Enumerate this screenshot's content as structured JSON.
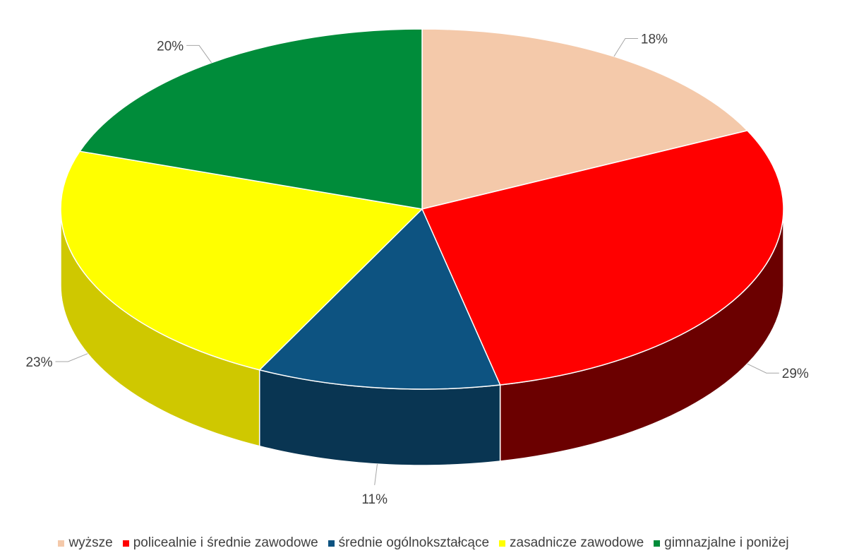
{
  "chart_data": {
    "type": "pie",
    "style": "3d",
    "legend_position": "bottom",
    "slices": [
      {
        "name": "wyższe",
        "value": 18,
        "label": "18%",
        "color": "#F4C9AA",
        "side_color": "#C9A081"
      },
      {
        "name": "policealnie i średnie zawodowe",
        "value": 29,
        "label": "29%",
        "color": "#FF0000",
        "side_color": "#6B0000"
      },
      {
        "name": "średnie ogólnokształcące",
        "value": 11,
        "label": "11%",
        "color": "#0D5381",
        "side_color": "#093552"
      },
      {
        "name": "zasadnicze zawodowe",
        "value": 23,
        "label": "23%",
        "color": "#FFFF00",
        "side_color": "#CFC800"
      },
      {
        "name": "gimnazjalne i poniżej",
        "value": 20,
        "label": "20%",
        "color": "#008C3A",
        "side_color": "#005A25"
      }
    ]
  }
}
